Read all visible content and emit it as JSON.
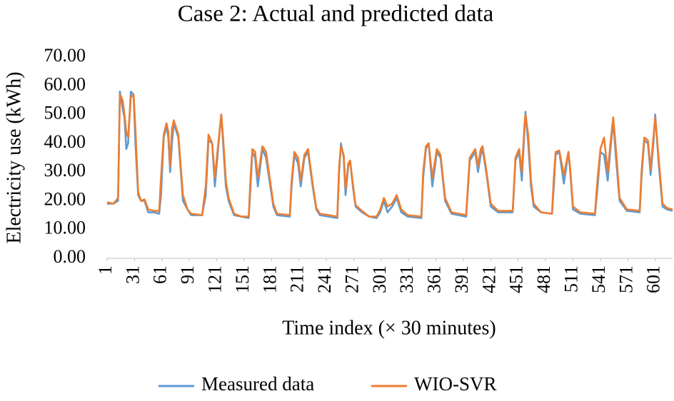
{
  "chart_data": {
    "type": "line",
    "title": "Case 2: Actual and predicted data",
    "x_label": "Time index (× 30 minutes)",
    "y_label": "Electricity use (kWh)",
    "xlim": [
      1,
      620
    ],
    "xticks": [
      1,
      31,
      61,
      91,
      121,
      151,
      181,
      211,
      241,
      271,
      301,
      331,
      361,
      391,
      421,
      451,
      481,
      511,
      541,
      571,
      601
    ],
    "ylim": [
      0,
      70
    ],
    "yticks": [
      {
        "value": 0,
        "label": "0.00"
      },
      {
        "value": 10,
        "label": "10.00"
      },
      {
        "value": 20,
        "label": "20.00"
      },
      {
        "value": 30,
        "label": "30.00"
      },
      {
        "value": 40,
        "label": "40.00"
      },
      {
        "value": 50,
        "label": "50.00"
      },
      {
        "value": 60,
        "label": "60.00"
      },
      {
        "value": 70,
        "label": "70.00"
      }
    ],
    "grid": false,
    "legend": "bottom",
    "x": [
      1,
      8,
      13,
      15,
      18,
      20,
      22,
      24,
      27,
      30,
      32,
      35,
      38,
      42,
      46,
      52,
      58,
      60,
      63,
      66,
      68,
      70,
      72,
      74,
      79,
      84,
      89,
      93,
      105,
      109,
      112,
      116,
      119,
      123,
      126,
      128,
      131,
      134,
      140,
      148,
      156,
      158,
      160,
      163,
      166,
      171,
      175,
      183,
      187,
      201,
      203,
      206,
      210,
      213,
      217,
      221,
      226,
      230,
      234,
      253,
      255,
      257,
      260,
      262,
      265,
      267,
      270,
      273,
      280,
      288,
      296,
      300,
      304,
      308,
      313,
      318,
      323,
      330,
      345,
      347,
      350,
      353,
      357,
      362,
      366,
      371,
      378,
      394,
      398,
      404,
      407,
      410,
      412,
      416,
      421,
      429,
      445,
      448,
      452,
      455,
      458,
      459,
      462,
      465,
      468,
      476,
      488,
      490,
      492,
      496,
      501,
      506,
      508,
      511,
      519,
      535,
      538,
      541,
      545,
      549,
      552,
      555,
      558,
      562,
      570,
      584,
      586,
      589,
      593,
      596,
      599,
      601,
      605,
      609,
      614,
      620
    ],
    "series": [
      {
        "name": "Measured data",
        "color": "#5b9bd5",
        "values": [
          19,
          19,
          20,
          58,
          52,
          49,
          38,
          40,
          58,
          57,
          40,
          22,
          20,
          20,
          16,
          16,
          15.5,
          22,
          42,
          46,
          42,
          30,
          40,
          47,
          42,
          20,
          17,
          15,
          15,
          22,
          41,
          40,
          25,
          40,
          50,
          40,
          25,
          20,
          15,
          14.5,
          14,
          25,
          37,
          35,
          25,
          38,
          35,
          18,
          15,
          14.5,
          25,
          36,
          33,
          25,
          35,
          37,
          25,
          17,
          15,
          14,
          30,
          40,
          35,
          22,
          32,
          34,
          25,
          18,
          16,
          14.5,
          14,
          16,
          20,
          16,
          18,
          21,
          16,
          14.5,
          14,
          28,
          38,
          40,
          25,
          37,
          35,
          20,
          15.5,
          14.5,
          34,
          37,
          30,
          36,
          38,
          30,
          18,
          16,
          16,
          34,
          37,
          27,
          45,
          51,
          40,
          25,
          18,
          16,
          15.5,
          25,
          36,
          37,
          26,
          37,
          30,
          17,
          15.5,
          15,
          25,
          37,
          36,
          27,
          38,
          48,
          35,
          20,
          16.5,
          16,
          28,
          41,
          40,
          29,
          40,
          50,
          32,
          18,
          17,
          16.5
        ]
      },
      {
        "name": "WIO-SVR",
        "color": "#ed7d31",
        "values": [
          19.5,
          19,
          21,
          57,
          55,
          50,
          44,
          42,
          56,
          57,
          45,
          23,
          20,
          20.5,
          17,
          16.5,
          16.5,
          28,
          43,
          47,
          44,
          32,
          45,
          48,
          43,
          22,
          17,
          15.5,
          15,
          25,
          43,
          40,
          28,
          41,
          50,
          42,
          27,
          21,
          15.5,
          14.5,
          14.5,
          28,
          38,
          37,
          28,
          39,
          37,
          19,
          15.5,
          15,
          27,
          37,
          35,
          27,
          36,
          38,
          26,
          17.5,
          15.5,
          14.5,
          32,
          39,
          36,
          24,
          33,
          34,
          26,
          18.5,
          16.5,
          14.5,
          14.5,
          17,
          21,
          18,
          19,
          22,
          17,
          15,
          14.5,
          30,
          39,
          40,
          28,
          38,
          36,
          21,
          16,
          15,
          35,
          38,
          32,
          38,
          39,
          31,
          19,
          16.5,
          16.5,
          35,
          38,
          30,
          47,
          50,
          43,
          27,
          19,
          16,
          15.5,
          28,
          37,
          37.5,
          29,
          37,
          31,
          18,
          16,
          15.5,
          28,
          38,
          42,
          30,
          40,
          49,
          38,
          21,
          17,
          16.5,
          30,
          42,
          41,
          31,
          42,
          49,
          34,
          19,
          17.5,
          17
        ]
      }
    ]
  }
}
